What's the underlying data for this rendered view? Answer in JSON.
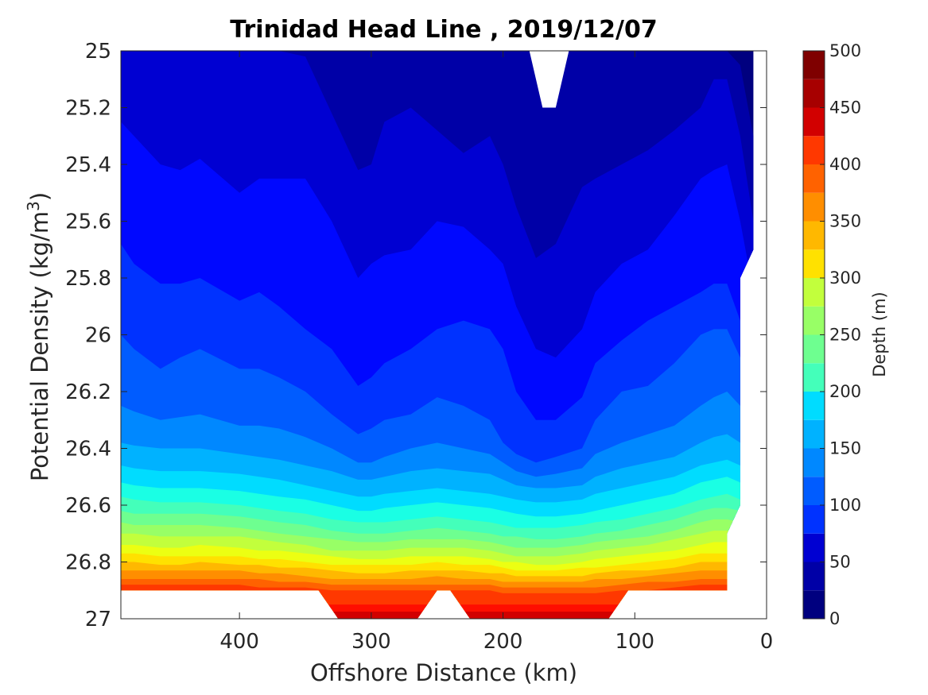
{
  "chart_data": {
    "type": "filled-contour",
    "title": "Trinidad Head Line , 2019/12/07",
    "xlabel": "Offshore Distance (km)",
    "ylabel_main": "Potential Density (kg/m",
    "ylabel_sup": "3",
    "ylabel_close": ")",
    "xlim": [
      490,
      0
    ],
    "ylim": [
      25,
      27
    ],
    "x_reversed": true,
    "y_reversed": true,
    "x_ticks": [
      400,
      300,
      200,
      100,
      0
    ],
    "x_tick_labels": [
      "400",
      "300",
      "200",
      "100",
      "0"
    ],
    "y_ticks": [
      25,
      25.2,
      25.4,
      25.6,
      25.8,
      26,
      26.2,
      26.4,
      26.6,
      26.8,
      27
    ],
    "y_tick_labels": [
      "25",
      "25.2",
      "25.4",
      "25.6",
      "25.8",
      "26",
      "26.2",
      "26.4",
      "26.6",
      "26.8",
      "27"
    ],
    "colorbar": {
      "label": "Depth (m)",
      "min": 0,
      "max": 500,
      "step": 25,
      "ticks": [
        0,
        50,
        100,
        150,
        200,
        250,
        300,
        350,
        400,
        450,
        500
      ],
      "tick_labels": [
        "0",
        "50",
        "100",
        "150",
        "200",
        "250",
        "300",
        "350",
        "400",
        "450",
        "500"
      ],
      "colors": [
        "#00007f",
        "#0000a7",
        "#0000d2",
        "#0008ff",
        "#0032ff",
        "#005cff",
        "#0088ff",
        "#00b2ff",
        "#00dcff",
        "#1affe4",
        "#44ffba",
        "#6eff90",
        "#98ff66",
        "#c2ff3c",
        "#ecff12",
        "#ffe100",
        "#ffb800",
        "#ff8e00",
        "#ff6200",
        "#ff3800",
        "#ff0e00",
        "#d20000",
        "#a70000",
        "#7f0000"
      ]
    },
    "depth_isopycnals": {
      "x": [
        490,
        480,
        460,
        445,
        430,
        400,
        385,
        370,
        350,
        330,
        310,
        300,
        290,
        270,
        250,
        230,
        210,
        200,
        190,
        175,
        160,
        140,
        130,
        110,
        90,
        70,
        50,
        40,
        30,
        20,
        10
      ],
      "levels": [
        25,
        50,
        75,
        100,
        125,
        150,
        175,
        200,
        225,
        250,
        275,
        300,
        325,
        350,
        375,
        400,
        425,
        450,
        475
      ],
      "sigma_at_level": [
        [
          25.0,
          25.0,
          25.0,
          25.0,
          25.0,
          25.0,
          25.0,
          25.0,
          25.0,
          24.98,
          24.95,
          24.96,
          25.0,
          25.0,
          24.97,
          25.0,
          25.0,
          25.0,
          25.0,
          25.0,
          25.0,
          24.99,
          24.97,
          25.0,
          25.0,
          25.0,
          25.0,
          25.0,
          25.0,
          25.05,
          25.3
        ],
        [
          25.0,
          25.0,
          25.0,
          25.0,
          25.0,
          25.0,
          25.0,
          25.0,
          25.02,
          25.22,
          25.42,
          25.4,
          25.25,
          25.2,
          25.28,
          25.36,
          25.3,
          25.4,
          25.55,
          25.73,
          25.68,
          25.48,
          25.45,
          25.4,
          25.35,
          25.28,
          25.2,
          25.1,
          25.1,
          25.3,
          25.6
        ],
        [
          25.25,
          25.3,
          25.4,
          25.42,
          25.38,
          25.5,
          25.45,
          25.45,
          25.45,
          25.6,
          25.8,
          25.75,
          25.72,
          25.7,
          25.6,
          25.62,
          25.7,
          25.75,
          25.9,
          26.05,
          26.08,
          25.98,
          25.85,
          25.75,
          25.7,
          25.58,
          25.45,
          25.42,
          25.4,
          25.6,
          25.85
        ],
        [
          25.68,
          25.75,
          25.82,
          25.82,
          25.8,
          25.88,
          25.85,
          25.9,
          25.98,
          26.05,
          26.18,
          26.15,
          26.1,
          26.05,
          25.98,
          25.95,
          25.98,
          26.05,
          26.2,
          26.3,
          26.3,
          26.22,
          26.1,
          26.02,
          25.95,
          25.9,
          25.85,
          25.82,
          25.82,
          25.95,
          26.08
        ],
        [
          26.0,
          26.05,
          26.12,
          26.08,
          26.05,
          26.12,
          26.12,
          26.15,
          26.2,
          26.28,
          26.35,
          26.33,
          26.3,
          26.28,
          26.22,
          26.25,
          26.3,
          26.38,
          26.42,
          26.45,
          26.43,
          26.4,
          26.3,
          26.2,
          26.18,
          26.1,
          26.0,
          25.98,
          25.98,
          26.08,
          26.2
        ],
        [
          26.25,
          26.27,
          26.3,
          26.29,
          26.28,
          26.32,
          26.32,
          26.33,
          26.36,
          26.4,
          26.45,
          26.45,
          26.43,
          26.4,
          26.38,
          26.4,
          26.42,
          26.45,
          26.48,
          26.5,
          26.49,
          26.47,
          26.42,
          26.38,
          26.35,
          26.32,
          26.25,
          26.22,
          26.2,
          26.25,
          26.32
        ],
        [
          26.38,
          26.39,
          26.4,
          26.4,
          26.4,
          26.42,
          26.43,
          26.44,
          26.46,
          26.48,
          26.51,
          26.51,
          26.5,
          26.48,
          26.47,
          26.48,
          26.49,
          26.51,
          26.53,
          26.54,
          26.54,
          26.53,
          26.5,
          26.47,
          26.45,
          26.43,
          26.38,
          26.36,
          26.35,
          26.38,
          26.42
        ],
        [
          26.46,
          26.47,
          26.48,
          26.48,
          26.48,
          26.49,
          26.5,
          26.51,
          26.53,
          26.55,
          26.57,
          26.57,
          26.56,
          26.55,
          26.54,
          26.55,
          26.56,
          26.57,
          26.58,
          26.59,
          26.59,
          26.58,
          26.56,
          26.54,
          26.52,
          26.5,
          26.46,
          26.45,
          26.44,
          26.46,
          26.49
        ],
        [
          26.52,
          26.53,
          26.54,
          26.54,
          26.54,
          26.55,
          26.56,
          26.57,
          26.58,
          26.6,
          26.62,
          26.62,
          26.61,
          26.6,
          26.59,
          26.6,
          26.61,
          26.62,
          26.63,
          26.64,
          26.64,
          26.63,
          26.62,
          26.6,
          26.58,
          26.56,
          26.52,
          26.51,
          26.5,
          26.52,
          26.55
        ],
        [
          26.57,
          26.58,
          26.59,
          26.59,
          26.59,
          26.6,
          26.61,
          26.62,
          26.63,
          26.65,
          26.66,
          26.66,
          26.66,
          26.65,
          26.64,
          26.65,
          26.66,
          26.67,
          26.68,
          26.68,
          26.68,
          26.67,
          26.66,
          26.65,
          26.63,
          26.61,
          26.58,
          26.57,
          26.56,
          26.58,
          26.6
        ],
        [
          26.62,
          26.63,
          26.63,
          26.63,
          26.63,
          26.64,
          26.65,
          26.66,
          26.67,
          26.69,
          26.7,
          26.7,
          26.7,
          26.69,
          26.68,
          26.69,
          26.7,
          26.71,
          26.71,
          26.72,
          26.72,
          26.71,
          26.7,
          26.69,
          26.67,
          26.65,
          26.62,
          26.61,
          26.61,
          26.62,
          26.64
        ],
        [
          26.66,
          26.67,
          26.67,
          26.67,
          26.67,
          26.68,
          26.69,
          26.7,
          26.71,
          26.72,
          26.73,
          26.73,
          26.73,
          26.72,
          26.72,
          26.72,
          26.73,
          26.74,
          26.75,
          26.75,
          26.75,
          26.74,
          26.73,
          26.72,
          26.71,
          26.69,
          26.66,
          26.65,
          26.65,
          26.66,
          26.68
        ],
        [
          26.7,
          26.7,
          26.71,
          26.71,
          26.71,
          26.71,
          26.72,
          26.73,
          26.74,
          26.76,
          26.76,
          26.76,
          26.76,
          26.75,
          26.75,
          26.75,
          26.76,
          26.77,
          26.78,
          26.78,
          26.78,
          26.77,
          26.76,
          26.75,
          26.74,
          26.72,
          26.7,
          26.69,
          26.69,
          26.7,
          26.71
        ],
        [
          26.74,
          26.74,
          26.75,
          26.75,
          26.74,
          26.75,
          26.76,
          26.76,
          26.77,
          26.78,
          26.79,
          26.79,
          26.79,
          26.78,
          26.78,
          26.78,
          26.79,
          26.8,
          26.8,
          26.81,
          26.81,
          26.8,
          26.79,
          26.78,
          26.77,
          26.76,
          26.74,
          26.73,
          26.73,
          26.73,
          26.74
        ],
        [
          26.77,
          26.77,
          26.78,
          26.78,
          26.78,
          26.78,
          26.79,
          26.79,
          26.8,
          26.81,
          26.81,
          26.81,
          26.81,
          26.81,
          26.8,
          26.81,
          26.81,
          26.82,
          26.83,
          26.83,
          26.83,
          26.82,
          26.82,
          26.81,
          26.8,
          26.79,
          26.77,
          26.77,
          26.77,
          26.77,
          26.77
        ],
        [
          26.8,
          26.8,
          26.81,
          26.81,
          26.8,
          26.81,
          26.81,
          26.82,
          26.82,
          26.83,
          26.84,
          26.84,
          26.84,
          26.83,
          26.83,
          26.83,
          26.84,
          26.84,
          26.85,
          26.85,
          26.85,
          26.85,
          26.84,
          26.83,
          26.83,
          26.82,
          26.8,
          26.8,
          26.8,
          26.8,
          26.8
        ],
        [
          26.83,
          26.83,
          26.83,
          26.83,
          26.83,
          26.83,
          26.84,
          26.84,
          26.85,
          26.86,
          26.86,
          26.86,
          26.86,
          26.86,
          26.85,
          26.86,
          26.86,
          26.87,
          26.87,
          26.87,
          26.87,
          26.87,
          26.86,
          26.86,
          26.85,
          26.84,
          26.83,
          26.83,
          26.83,
          26.83,
          26.83
        ],
        [
          26.86,
          26.86,
          26.86,
          26.86,
          26.86,
          26.86,
          26.86,
          26.87,
          26.87,
          26.88,
          26.88,
          26.88,
          26.88,
          26.88,
          26.88,
          26.88,
          26.88,
          26.89,
          26.89,
          26.89,
          26.89,
          26.89,
          26.89,
          26.88,
          26.87,
          26.87,
          26.86,
          26.86,
          26.86,
          26.86,
          26.86
        ],
        [
          26.88,
          26.88,
          26.88,
          26.88,
          26.88,
          26.88,
          26.89,
          26.89,
          26.89,
          26.9,
          26.9,
          26.9,
          26.9,
          26.9,
          26.9,
          26.9,
          26.9,
          26.91,
          26.91,
          26.91,
          26.91,
          26.91,
          26.91,
          26.9,
          26.9,
          26.89,
          26.88,
          26.88,
          26.88,
          26.88,
          26.88
        ]
      ]
    },
    "data_extent": {
      "shallow_gap_polygon": [
        [
          200,
          25
        ],
        [
          180,
          25
        ],
        [
          170,
          25.2
        ],
        [
          160,
          25.2
        ],
        [
          150,
          25
        ],
        [
          200,
          25
        ]
      ],
      "deep_edge": [
        [
          490,
          26.9
        ],
        [
          340,
          26.9
        ],
        [
          325,
          27
        ],
        [
          265,
          27
        ],
        [
          250,
          26.9
        ],
        [
          240,
          26.9
        ],
        [
          225,
          27
        ],
        [
          120,
          27
        ],
        [
          105,
          26.9
        ],
        [
          30,
          26.9
        ],
        [
          30,
          26.7
        ],
        [
          20,
          26.6
        ],
        [
          20,
          25.8
        ],
        [
          10,
          25.7
        ],
        [
          10,
          25
        ]
      ]
    }
  }
}
